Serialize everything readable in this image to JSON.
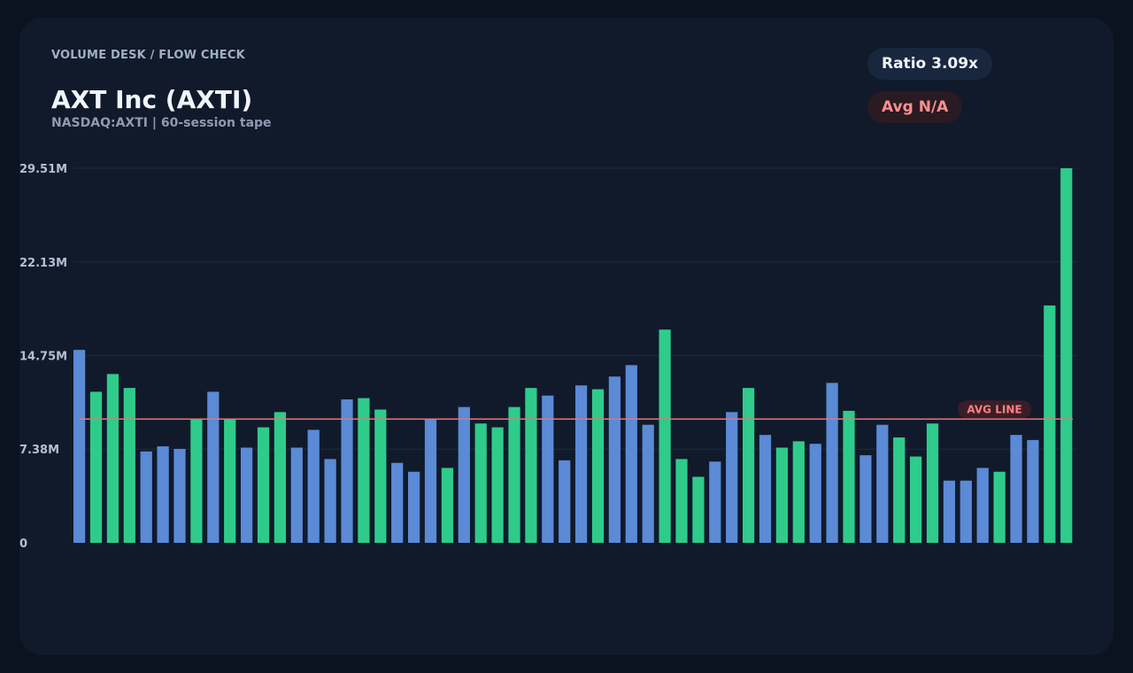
{
  "header": {
    "eyebrow": "VOLUME DESK / FLOW CHECK",
    "title": "AXT Inc (AXTI)",
    "subtitle": "NASDAQ:AXTI | 60-session tape"
  },
  "badges": {
    "ratio": "Ratio 3.09x",
    "avg": "Avg N/A"
  },
  "colors": {
    "background": "#0b1220",
    "card": "#101a2b",
    "down_bar": "#5b8ad6",
    "up_bar": "#2fcb8b",
    "avg_line": "#f07070",
    "grid": "#1f2b3d"
  },
  "chart_data": {
    "type": "bar",
    "title": "",
    "xlabel": "",
    "ylabel": "",
    "ylim": [
      0,
      29.51
    ],
    "unit": "M",
    "y_tick_labels": [
      "0",
      "7.38M",
      "14.75M",
      "22.13M",
      "29.51M"
    ],
    "y_tick_values": [
      0,
      7.38,
      14.75,
      22.13,
      29.51
    ],
    "grid": true,
    "avg_line": {
      "label": "AVG LINE",
      "value": 9.75
    },
    "series": [
      {
        "values": [
          15.2,
          11.9,
          13.3,
          12.2,
          7.2,
          7.6,
          7.4,
          9.8,
          11.9,
          9.7,
          7.5,
          9.1,
          10.3,
          7.5,
          8.9,
          6.6,
          11.3,
          11.4,
          10.5,
          6.3,
          5.6,
          9.8,
          5.9,
          10.7,
          9.4,
          9.1,
          10.7,
          12.2,
          11.6,
          6.5,
          12.4,
          12.1,
          13.1,
          14.0,
          9.3,
          16.8,
          6.6,
          5.2,
          6.4,
          10.3,
          12.2,
          8.5,
          7.5,
          8.0,
          7.8,
          12.6,
          10.4,
          6.9,
          9.3,
          8.3,
          6.8,
          9.4,
          4.9,
          4.9,
          5.9,
          5.6,
          8.5,
          8.1,
          18.7,
          29.51
        ],
        "directions": [
          "down",
          "up",
          "up",
          "up",
          "down",
          "down",
          "down",
          "up",
          "down",
          "up",
          "down",
          "up",
          "up",
          "down",
          "down",
          "down",
          "down",
          "up",
          "up",
          "down",
          "down",
          "down",
          "up",
          "down",
          "up",
          "up",
          "up",
          "up",
          "down",
          "down",
          "down",
          "up",
          "down",
          "down",
          "down",
          "up",
          "up",
          "up",
          "down",
          "down",
          "up",
          "down",
          "up",
          "up",
          "down",
          "down",
          "up",
          "down",
          "down",
          "up",
          "up",
          "up",
          "down",
          "down",
          "down",
          "up",
          "down",
          "down",
          "up",
          "up"
        ]
      }
    ]
  }
}
